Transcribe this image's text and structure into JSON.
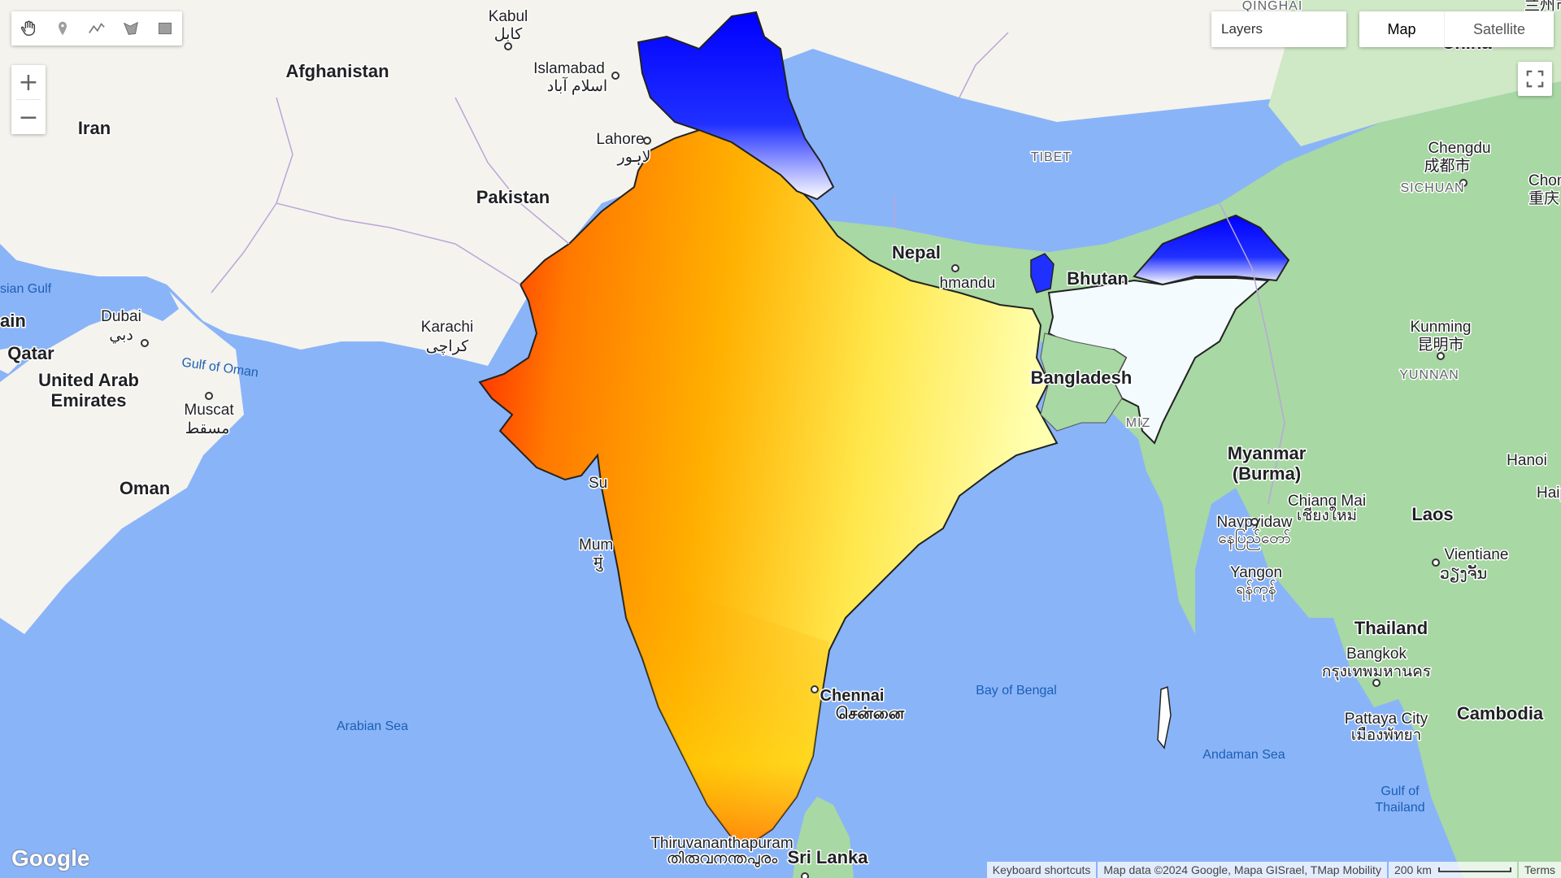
{
  "toolbar": {
    "tools": [
      {
        "icon": "hand-icon"
      },
      {
        "icon": "marker-icon"
      },
      {
        "icon": "polyline-icon"
      },
      {
        "icon": "polygon-icon"
      },
      {
        "icon": "rectangle-icon"
      }
    ]
  },
  "zoom": {
    "in": "+",
    "out": "−"
  },
  "layers": {
    "label": "Layers"
  },
  "map_type": {
    "map": "Map",
    "satellite": "Satellite",
    "selected": "Map"
  },
  "fullscreen": {
    "icon": "fullscreen-icon"
  },
  "labels": {
    "countries": {
      "afghanistan": "Afghanistan",
      "iran": "Iran",
      "pakistan": "Pakistan",
      "nepal": "Nepal",
      "bhutan": "Bhutan",
      "bangladesh": "Bangladesh",
      "myanmar_1": "Myanmar",
      "myanmar_2": "(Burma)",
      "oman": "Oman",
      "uae_1": "United Arab",
      "uae_2": "Emirates",
      "qatar": "Qatar",
      "bahrain": "ain",
      "thailand": "Thailand",
      "laos": "Laos",
      "cambodia": "Cambodia",
      "sri_lanka": "Sri Lanka",
      "china": "China"
    },
    "cities": {
      "kabul": "Kabul",
      "kabul_native": "کابل",
      "islamabad": "Islamabad",
      "islamabad_native": "اسلام آباد",
      "lahore": "Lahore",
      "lahore_native": "لاہور",
      "karachi": "Karachi",
      "karachi_native": "کراچی",
      "dubai": "Dubai",
      "dubai_native": "دبي",
      "muscat": "Muscat",
      "muscat_native": "مسقط",
      "kathmandu": "hmandu",
      "chennai": "Chennai",
      "chennai_native": "சென்னை",
      "thiruvananthapuram": "Thiruvananthapuram",
      "thiruvananthapuram_native": "തിരുവനന്തപുരം",
      "mumbai": "Mum",
      "mumbai_native": "मुं",
      "surat": "Su",
      "chengdu": "Chengdu",
      "chengdu_native": "成都市",
      "chongqing": "Chongq",
      "chongqing_native": "重庆",
      "kunming": "Kunming",
      "kunming_native": "昆明市",
      "naypyidaw": "Naypyidaw",
      "naypyidaw_native": "နေပြည်တော်",
      "chiang_mai": "Chiang Mai",
      "chiang_mai_native": "เชียงใหม่",
      "yangon": "Yangon",
      "yangon_native": "ရန်ကုန်",
      "bangkok": "Bangkok",
      "bangkok_native": "กรุงเทพมหานคร",
      "pattaya": "Pattaya City",
      "pattaya_native": "เมืองพัทยา",
      "vientiane": "Vientiane",
      "vientiane_native": "ວຽງຈັນ",
      "hanoi": "Hanoi",
      "haiphong": "Haipho",
      "lanzhou": "兰州市"
    },
    "regions": {
      "qinghai": "QINGHAI",
      "tibet": "TIBET",
      "sichuan": "SICHUAN",
      "yunnan": "YUNNAN",
      "mizoram": "MIZ"
    },
    "seas": {
      "arabian_sea": "Arabian Sea",
      "bay_of_bengal": "Bay of Bengal",
      "andaman_sea": "Andaman Sea",
      "gulf_of_oman": "Gulf of Oman",
      "persian_gulf": "sian Gulf",
      "gulf_of_thailand_1": "Gulf of",
      "gulf_of_thailand_2": "Thailand"
    }
  },
  "overlay": {
    "palette": [
      "#ff0000",
      "#ff8c00",
      "#ffd700",
      "#ffff66",
      "#ffffff",
      "#0000ff"
    ],
    "description_colors": {
      "hot": "#ff0000",
      "warm": "#ff8c00",
      "mild": "#ffff66",
      "cold": "#0000ff"
    }
  },
  "colors": {
    "water": "#8ab4f8",
    "land": "#f5f3ee",
    "forest": "#9fd3a0",
    "border": "#222222"
  },
  "attribution": {
    "shortcuts": "Keyboard shortcuts",
    "data": "Map data ©2024 Google, Mapa GISrael, TMap Mobility",
    "scale": "200 km",
    "terms": "Terms"
  },
  "google_logo": "Google"
}
